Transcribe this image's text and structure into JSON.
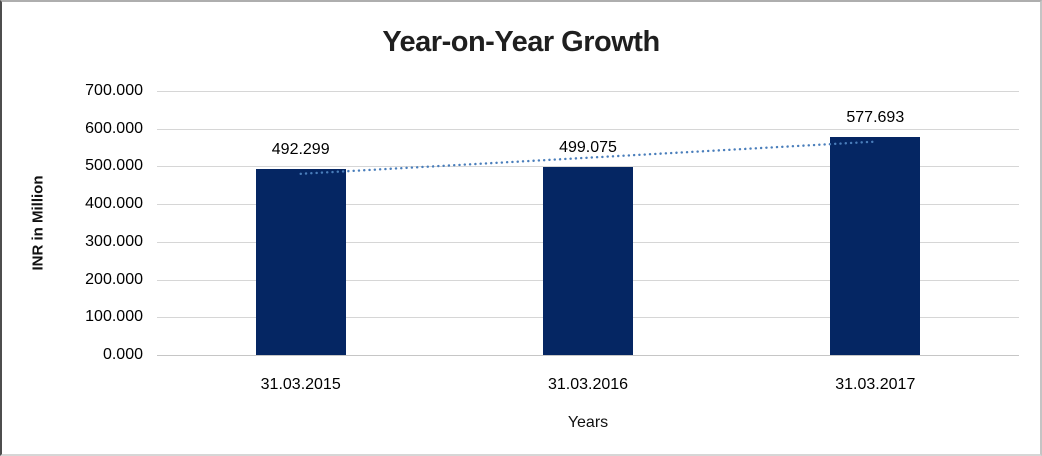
{
  "chart_data": {
    "type": "bar",
    "title": "Year-on-Year Growth",
    "xlabel": "Years",
    "ylabel": "INR in Million",
    "categories": [
      "31.03.2015",
      "31.03.2016",
      "31.03.2017"
    ],
    "values": [
      492.299,
      499.075,
      577.693
    ],
    "data_labels": [
      "492.299",
      "499.075",
      "577.693"
    ],
    "ylim": [
      0,
      700
    ],
    "ytick_step": 100,
    "ytick_labels": [
      "0.000",
      "100.000",
      "200.000",
      "300.000",
      "400.000",
      "500.000",
      "600.000",
      "700.000"
    ],
    "grid": true,
    "legend": "none",
    "trendline": {
      "type": "linear",
      "style": "dotted"
    },
    "colors": {
      "bar": "#052663",
      "trendline": "#4a7ebb",
      "gridline": "#d6d6d6",
      "title_text": "#1f1f1f",
      "label_text": "#000000"
    }
  }
}
